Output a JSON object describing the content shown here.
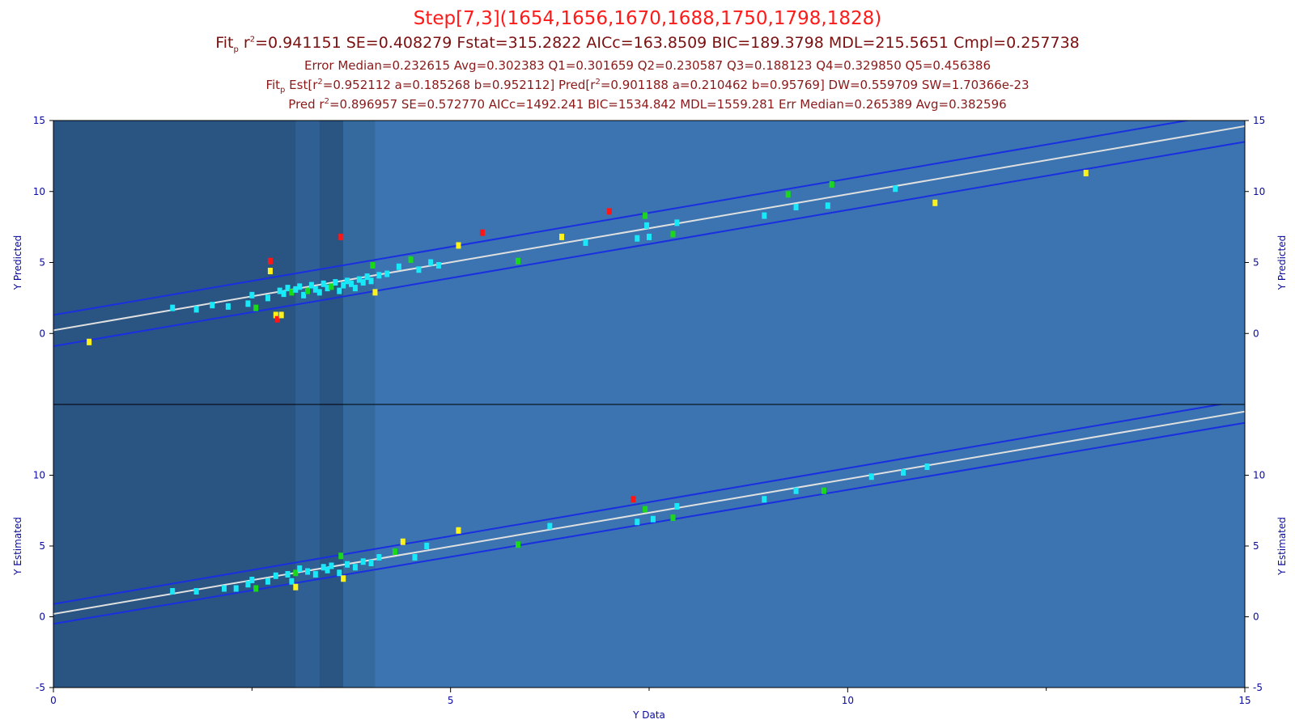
{
  "header": {
    "title": "Step[7,3](1654,1656,1670,1688,1750,1798,1828)",
    "fit_prefix": "Fit",
    "fit_sub": "p",
    "fit_r2_label": " r",
    "fit_stats": "=0.941151 SE=0.408279 Fstat=315.2822 AICc=163.8509 BIC=189.3798 MDL=215.5651 Cmpl=0.257738",
    "error_line": "Error Median=0.232615 Avg=0.302383 Q1=0.301659 Q2=0.230587 Q3=0.188123 Q4=0.329850 Q5=0.456386",
    "est_prefix": "Fit",
    "est_sub": "p",
    "est_a": " Est[r",
    "est_b": "=0.952112 a=0.185268 b=0.952112] Pred[r",
    "est_c": "=0.901188 a=0.210462 b=0.95769] DW=0.559709 SW=1.70366e-23",
    "pred_a": "Pred r",
    "pred_b": "=0.896957 SE=0.572770 AICc=1492.241 BIC=1534.842 MDL=1559.281 Err Median=0.265389 Avg=0.382596"
  },
  "chart_data": [
    {
      "type": "scatter",
      "panel": "top",
      "ylabel": "Y Predicted",
      "xlim": [
        0,
        15
      ],
      "ylim": [
        -5,
        15
      ],
      "yticks": [
        0,
        5,
        10,
        15
      ],
      "fit_line": {
        "x": [
          0,
          15
        ],
        "y": [
          0.22,
          14.6
        ]
      },
      "band_upper": {
        "x": [
          0,
          15
        ],
        "y": [
          1.3,
          15.7
        ]
      },
      "band_lower": {
        "x": [
          0,
          15
        ],
        "y": [
          -0.9,
          13.5
        ]
      },
      "points": [
        [
          0.45,
          -0.6,
          "yellow"
        ],
        [
          1.5,
          1.8,
          "cyan"
        ],
        [
          1.8,
          1.7,
          "cyan"
        ],
        [
          2.0,
          2.0,
          "cyan"
        ],
        [
          2.2,
          1.9,
          "cyan"
        ],
        [
          2.45,
          2.1,
          "cyan"
        ],
        [
          2.5,
          2.7,
          "cyan"
        ],
        [
          2.55,
          1.8,
          "green"
        ],
        [
          2.7,
          2.5,
          "cyan"
        ],
        [
          2.85,
          3.0,
          "cyan"
        ],
        [
          2.9,
          2.8,
          "cyan"
        ],
        [
          2.95,
          3.2,
          "cyan"
        ],
        [
          3.0,
          2.9,
          "green"
        ],
        [
          3.05,
          3.1,
          "cyan"
        ],
        [
          2.73,
          5.1,
          "red"
        ],
        [
          2.73,
          4.4,
          "yellow"
        ],
        [
          2.8,
          1.3,
          "yellow"
        ],
        [
          2.82,
          1.0,
          "red"
        ],
        [
          2.87,
          1.3,
          "yellow"
        ],
        [
          3.1,
          3.3,
          "cyan"
        ],
        [
          3.15,
          2.7,
          "cyan"
        ],
        [
          3.2,
          3.0,
          "green"
        ],
        [
          3.25,
          3.4,
          "cyan"
        ],
        [
          3.3,
          3.1,
          "cyan"
        ],
        [
          3.35,
          2.9,
          "cyan"
        ],
        [
          3.4,
          3.5,
          "cyan"
        ],
        [
          3.45,
          3.2,
          "cyan"
        ],
        [
          3.5,
          3.3,
          "green"
        ],
        [
          3.55,
          3.6,
          "cyan"
        ],
        [
          3.6,
          3.0,
          "cyan"
        ],
        [
          3.62,
          6.8,
          "red"
        ],
        [
          3.65,
          3.4,
          "cyan"
        ],
        [
          3.7,
          3.7,
          "cyan"
        ],
        [
          3.75,
          3.5,
          "cyan"
        ],
        [
          3.8,
          3.2,
          "cyan"
        ],
        [
          3.85,
          3.8,
          "cyan"
        ],
        [
          3.9,
          3.6,
          "cyan"
        ],
        [
          3.95,
          4.0,
          "cyan"
        ],
        [
          4.0,
          3.7,
          "cyan"
        ],
        [
          4.02,
          4.8,
          "green"
        ],
        [
          4.05,
          2.9,
          "yellow"
        ],
        [
          4.1,
          4.1,
          "cyan"
        ],
        [
          4.2,
          4.2,
          "cyan"
        ],
        [
          4.35,
          4.7,
          "cyan"
        ],
        [
          4.5,
          5.2,
          "green"
        ],
        [
          4.6,
          4.5,
          "cyan"
        ],
        [
          4.75,
          5.0,
          "cyan"
        ],
        [
          4.85,
          4.8,
          "cyan"
        ],
        [
          5.1,
          6.2,
          "yellow"
        ],
        [
          5.4,
          7.1,
          "red"
        ],
        [
          5.85,
          5.1,
          "green"
        ],
        [
          6.4,
          6.8,
          "yellow"
        ],
        [
          6.7,
          6.4,
          "cyan"
        ],
        [
          7.0,
          8.6,
          "red"
        ],
        [
          7.35,
          6.7,
          "cyan"
        ],
        [
          7.45,
          8.3,
          "green"
        ],
        [
          7.47,
          7.6,
          "cyan"
        ],
        [
          7.5,
          6.8,
          "cyan"
        ],
        [
          7.8,
          7.0,
          "green"
        ],
        [
          7.85,
          7.8,
          "cyan"
        ],
        [
          8.95,
          8.3,
          "cyan"
        ],
        [
          9.25,
          9.8,
          "green"
        ],
        [
          9.35,
          8.9,
          "cyan"
        ],
        [
          9.75,
          9.0,
          "cyan"
        ],
        [
          9.8,
          10.5,
          "green"
        ],
        [
          10.6,
          10.2,
          "cyan"
        ],
        [
          11.1,
          9.2,
          "yellow"
        ],
        [
          13.0,
          11.3,
          "yellow"
        ]
      ]
    },
    {
      "type": "scatter",
      "panel": "bottom",
      "ylabel": "Y Estimated",
      "xlabel": "Y Data",
      "xlim": [
        0,
        15
      ],
      "ylim": [
        -5,
        15
      ],
      "xticks": [
        0,
        5,
        10,
        15
      ],
      "yticks": [
        -5,
        0,
        5,
        10
      ],
      "fit_line": {
        "x": [
          0,
          15
        ],
        "y": [
          0.2,
          14.5
        ]
      },
      "band_upper": {
        "x": [
          0,
          15
        ],
        "y": [
          0.9,
          15.3
        ]
      },
      "band_lower": {
        "x": [
          0,
          15
        ],
        "y": [
          -0.5,
          13.7
        ]
      },
      "points": [
        [
          1.5,
          1.8,
          "cyan"
        ],
        [
          1.8,
          1.8,
          "cyan"
        ],
        [
          2.15,
          2.0,
          "cyan"
        ],
        [
          2.3,
          2.0,
          "cyan"
        ],
        [
          2.45,
          2.3,
          "cyan"
        ],
        [
          2.5,
          2.6,
          "cyan"
        ],
        [
          2.55,
          2.0,
          "green"
        ],
        [
          2.7,
          2.5,
          "cyan"
        ],
        [
          2.8,
          2.9,
          "cyan"
        ],
        [
          2.95,
          3.0,
          "cyan"
        ],
        [
          3.0,
          2.5,
          "cyan"
        ],
        [
          3.05,
          3.1,
          "green"
        ],
        [
          3.1,
          3.4,
          "cyan"
        ],
        [
          3.2,
          3.2,
          "cyan"
        ],
        [
          3.3,
          3.0,
          "cyan"
        ],
        [
          3.4,
          3.5,
          "cyan"
        ],
        [
          3.45,
          3.3,
          "cyan"
        ],
        [
          3.5,
          3.6,
          "cyan"
        ],
        [
          3.6,
          3.1,
          "cyan"
        ],
        [
          3.62,
          4.3,
          "green"
        ],
        [
          3.65,
          2.7,
          "yellow"
        ],
        [
          3.05,
          2.1,
          "yellow"
        ],
        [
          3.7,
          3.7,
          "cyan"
        ],
        [
          3.8,
          3.5,
          "cyan"
        ],
        [
          3.9,
          3.9,
          "cyan"
        ],
        [
          4.0,
          3.8,
          "cyan"
        ],
        [
          4.1,
          4.2,
          "cyan"
        ],
        [
          4.3,
          4.6,
          "green"
        ],
        [
          4.4,
          5.3,
          "yellow"
        ],
        [
          4.55,
          4.2,
          "cyan"
        ],
        [
          4.7,
          5.0,
          "cyan"
        ],
        [
          5.1,
          6.1,
          "yellow"
        ],
        [
          5.85,
          5.1,
          "green"
        ],
        [
          6.25,
          6.4,
          "cyan"
        ],
        [
          7.3,
          8.3,
          "red"
        ],
        [
          7.35,
          6.7,
          "cyan"
        ],
        [
          7.45,
          7.6,
          "green"
        ],
        [
          7.55,
          6.9,
          "cyan"
        ],
        [
          7.8,
          7.0,
          "green"
        ],
        [
          7.85,
          7.8,
          "cyan"
        ],
        [
          8.95,
          8.3,
          "cyan"
        ],
        [
          9.35,
          8.9,
          "cyan"
        ],
        [
          9.7,
          8.9,
          "green"
        ],
        [
          10.3,
          9.9,
          "cyan"
        ],
        [
          10.7,
          10.2,
          "cyan"
        ],
        [
          11.0,
          10.6,
          "cyan"
        ]
      ]
    }
  ],
  "colors": {
    "frame_bg": "#3b74b0",
    "shade_dark": "#2a5583",
    "shade_mid": "#2f5f93",
    "shade_light": "#356a9f",
    "band": "#1a2fe0",
    "fit": "#e0e0e0",
    "axis_text": "#0a0aa0",
    "cyan": "#18e8f8",
    "green": "#19d919",
    "yellow": "#fff21a",
    "red": "#ff1616"
  }
}
